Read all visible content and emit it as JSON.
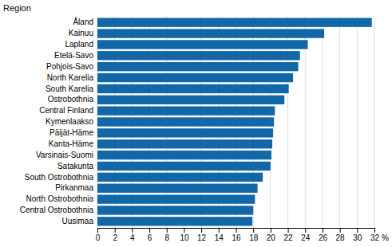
{
  "chart_data": {
    "type": "bar",
    "orientation": "horizontal",
    "categories": [
      "Uusimaa",
      "Central Ostrobothnia",
      "North Ostrobothnia",
      "Pirkanmaa",
      "South Ostrobothnia",
      "Satakunta",
      "Varsinais-Suomi",
      "Kanta-Häme",
      "Päijät-Häme",
      "Kymenlaakso",
      "Central Finland",
      "Ostrobothnia",
      "South Karelia",
      "North Karelia",
      "Pohjois-Savo",
      "Etelä-Savo",
      "Lapland",
      "Kainuu",
      "Åland"
    ],
    "values": [
      17.9,
      18.0,
      18.2,
      18.5,
      19.1,
      20.0,
      20.1,
      20.2,
      20.3,
      20.4,
      20.5,
      21.6,
      22.1,
      22.6,
      23.2,
      23.4,
      24.3,
      26.2,
      31.7
    ],
    "color": "#1167a8",
    "ylabel": "Region",
    "xlabel": "%",
    "xlim": [
      0,
      32
    ],
    "xticks": [
      0,
      2,
      4,
      6,
      8,
      10,
      12,
      14,
      16,
      18,
      20,
      22,
      24,
      26,
      28,
      30,
      32
    ],
    "grid": true
  }
}
